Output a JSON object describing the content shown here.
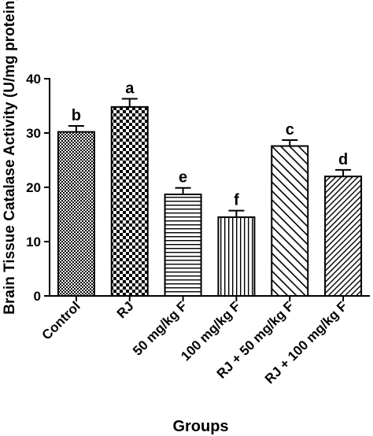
{
  "chart_data": {
    "type": "bar",
    "xlabel": "Groups",
    "ylabel": "Brain Tissue Catalase Activity (U/mg protein)",
    "ylim": [
      0,
      40
    ],
    "yticks": [
      "0",
      "10",
      "20",
      "30",
      "40"
    ],
    "grid": false,
    "categories": [
      "Control",
      "RJ",
      "50 mg/kg F",
      "100 mg/kg F",
      "RJ + 50 mg/kg F",
      "RJ + 100 mg/kg F"
    ],
    "values": [
      30.2,
      34.8,
      18.7,
      14.5,
      27.6,
      22.0
    ],
    "errors": [
      1.1,
      1.5,
      1.2,
      1.2,
      1.1,
      1.2
    ],
    "significance_letters": [
      "b",
      "a",
      "e",
      "f",
      "c",
      "d"
    ],
    "patterns": [
      "fine-checker",
      "large-checker",
      "horizontal-lines",
      "vertical-lines",
      "diagonal-hatch",
      "dense-diagonal-hatch"
    ],
    "bar_color": "#000000",
    "background": "#ffffff"
  }
}
